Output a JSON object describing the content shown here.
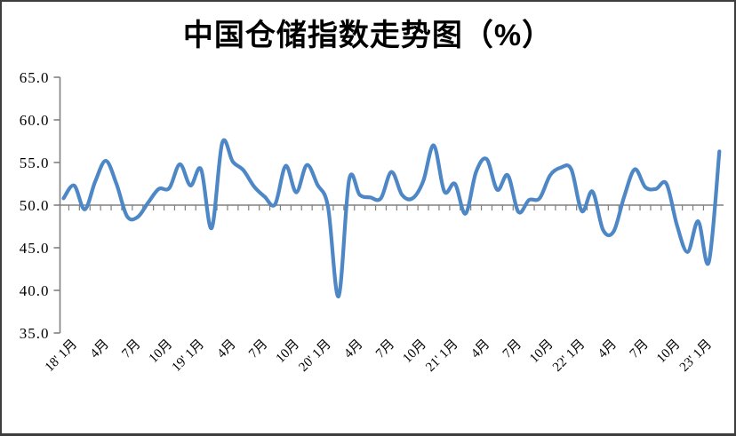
{
  "chart_data": {
    "type": "line",
    "title": "中国仓储指数走势图（%）",
    "series": [
      {
        "name": "中国仓储指数",
        "values": [
          50.8,
          52.3,
          49.5,
          52.8,
          55.2,
          52.5,
          48.7,
          48.6,
          50.3,
          51.9,
          52.0,
          54.8,
          52.3,
          54.2,
          47.3,
          57.3,
          55.1,
          54.1,
          52.2,
          51.0,
          50.1,
          54.6,
          51.5,
          54.7,
          52.4,
          49.8,
          39.3,
          53.0,
          51.2,
          50.9,
          50.8,
          53.9,
          51.2,
          50.8,
          52.8,
          57.0,
          51.6,
          52.5,
          49.0,
          53.9,
          55.4,
          51.8,
          53.5,
          49.2,
          50.6,
          50.8,
          53.5,
          54.4,
          54.2,
          49.3,
          51.6,
          47.1,
          46.9,
          51.0,
          54.2,
          52.1,
          51.9,
          52.5,
          47.6,
          44.5,
          48.1,
          43.3,
          56.3
        ]
      }
    ],
    "y_axis": {
      "tick_labels": [
        "65.0",
        "60.0",
        "55.0",
        "50.0",
        "45.0",
        "40.0",
        "35.0"
      ],
      "tick_values": [
        65,
        60,
        55,
        50,
        45,
        40,
        35
      ],
      "min": 35,
      "max": 65,
      "step": 5,
      "category_axis_crosses_at": 50
    },
    "x_axis": {
      "tick_labels": [
        "18' 1月",
        "4月",
        "7月",
        "10月",
        "19' 1月",
        "4月",
        "7月",
        "10月",
        "20' 1月",
        "4月",
        "7月",
        "10月",
        "21' 1月",
        "4月",
        "7月",
        "10月",
        "22' 1月",
        "4月",
        "7月",
        "10月",
        "23' 1月"
      ],
      "label_every_n_points": 3,
      "first_labeled_point_index": 1
    },
    "legend": "none",
    "grid": false,
    "colors": {
      "line": "#4E87C6",
      "axis": "#808080",
      "title": "#000000",
      "background": "#FFFFFF"
    }
  }
}
